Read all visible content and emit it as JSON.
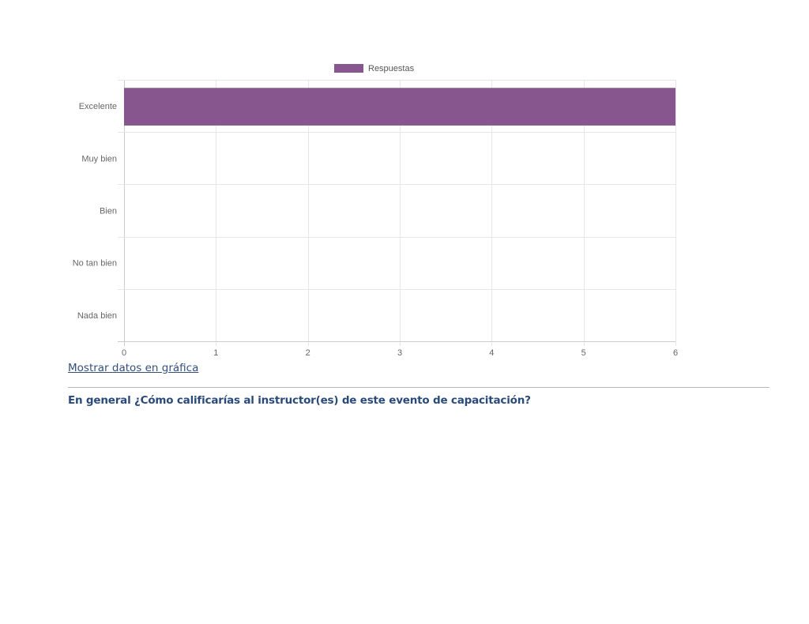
{
  "chart_data": {
    "type": "bar",
    "orientation": "horizontal",
    "categories": [
      "Excelente",
      "Muy bien",
      "Bien",
      "No tan bien",
      "Nada bien"
    ],
    "series": [
      {
        "name": "Respuestas",
        "values": [
          6,
          0,
          0,
          0,
          0
        ],
        "color": "#87568f"
      }
    ],
    "xlim": [
      0,
      6
    ],
    "x_ticks": [
      "0",
      "1",
      "2",
      "3",
      "4",
      "5",
      "6"
    ],
    "grid": true,
    "legend_position": "top-center"
  },
  "links": {
    "show_data": "Mostrar datos en gráfica"
  },
  "question": {
    "text": "En general ¿Cómo calificarías al instructor(es) de este evento de capacitación?"
  }
}
